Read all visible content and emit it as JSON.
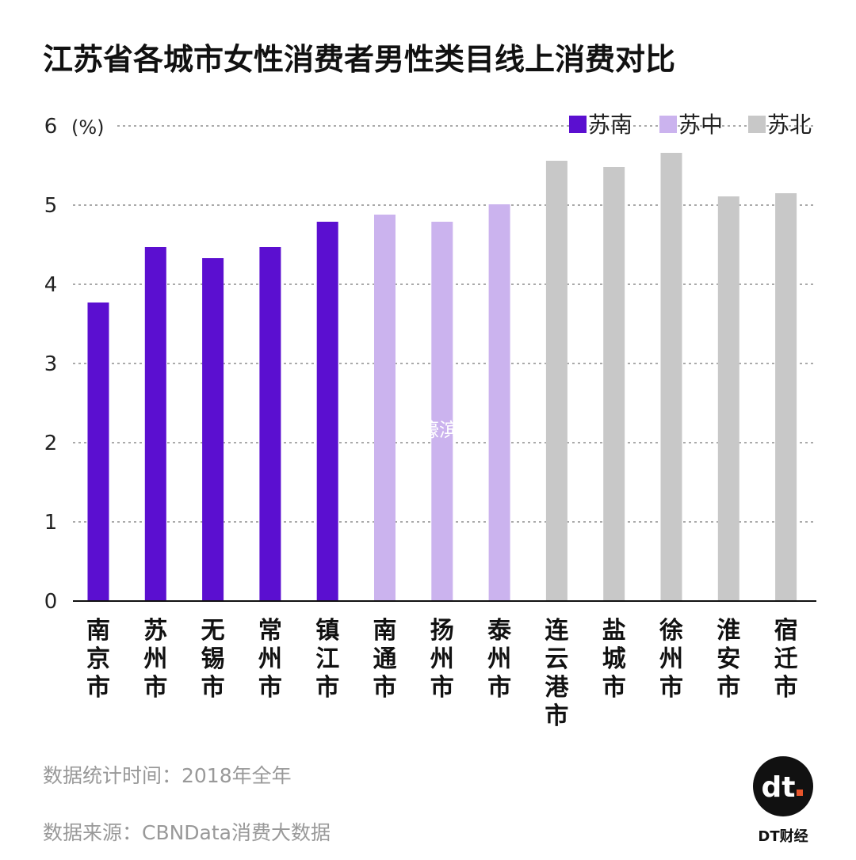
{
  "chart_data": {
    "type": "bar",
    "title": "江苏省各城市女性消费者男性类目线上消费对比",
    "unit_label": "(%)",
    "ylim": [
      0,
      6
    ],
    "yticks": [
      0,
      1,
      2,
      3,
      4,
      5,
      6
    ],
    "grid": true,
    "legend_position": "top-right",
    "categories": [
      "南京市",
      "苏州市",
      "无锡市",
      "常州市",
      "镇江市",
      "南通市",
      "扬州市",
      "泰州市",
      "连云港市",
      "盐城市",
      "徐州市",
      "淮安市",
      "宿迁市"
    ],
    "values": [
      3.77,
      4.47,
      4.33,
      4.47,
      4.79,
      4.88,
      4.79,
      5.01,
      5.56,
      5.48,
      5.66,
      5.11,
      5.15
    ],
    "groups": [
      "苏南",
      "苏南",
      "苏南",
      "苏南",
      "苏南",
      "苏中",
      "苏中",
      "苏中",
      "苏北",
      "苏北",
      "苏北",
      "苏北",
      "苏北"
    ],
    "legend": [
      {
        "name": "苏南",
        "color": "#5b0fd0"
      },
      {
        "name": "苏中",
        "color": "#cbb3ee"
      },
      {
        "name": "苏北",
        "color": "#c8c8c8"
      }
    ]
  },
  "footer": {
    "stat_time": "数据统计时间：2018年全年",
    "source": "数据来源：CBNData消费大数据"
  },
  "watermark": "@濠滨",
  "brand": {
    "logo_text": "dt",
    "name": "DT财经"
  }
}
